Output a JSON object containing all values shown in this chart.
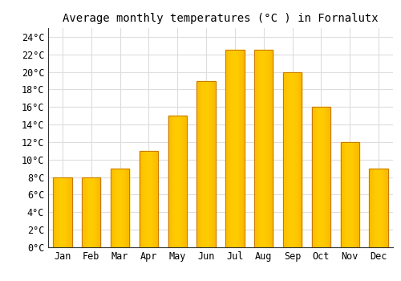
{
  "title": "Average monthly temperatures (°C ) in Fornalutx",
  "months": [
    "Jan",
    "Feb",
    "Mar",
    "Apr",
    "May",
    "Jun",
    "Jul",
    "Aug",
    "Sep",
    "Oct",
    "Nov",
    "Dec"
  ],
  "values": [
    8,
    8,
    9,
    11,
    15,
    19,
    22.5,
    22.5,
    20,
    16,
    12,
    9
  ],
  "bar_color_center": "#FFCC00",
  "bar_color_edge": "#F5A000",
  "background_color": "#FFFFFF",
  "grid_color": "#DDDDDD",
  "ylim": [
    0,
    25
  ],
  "yticks": [
    0,
    2,
    4,
    6,
    8,
    10,
    12,
    14,
    16,
    18,
    20,
    22,
    24
  ],
  "title_fontsize": 10,
  "tick_fontsize": 8.5,
  "font_family": "monospace",
  "spine_color": "#333333"
}
